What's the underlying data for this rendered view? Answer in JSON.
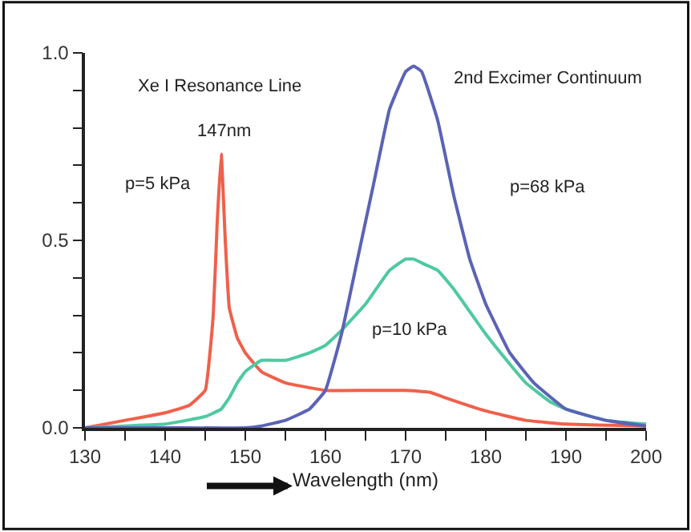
{
  "chart_data": {
    "type": "line",
    "xlabel": "Wavelength (nm)",
    "xlim": [
      130,
      200
    ],
    "ylim": [
      0,
      1
    ],
    "xticks": [
      130,
      {
        "value": 135,
        "label": null
      },
      140,
      {
        "value": 145,
        "label": null
      },
      150,
      {
        "value": 155,
        "label": null
      },
      160,
      {
        "value": 165,
        "label": null
      },
      170,
      {
        "value": 175,
        "label": null
      },
      180,
      {
        "value": 185,
        "label": null
      },
      190,
      {
        "value": 195,
        "label": null
      },
      200
    ],
    "yticks": [
      {
        "value": 0,
        "label": "0.0"
      },
      {
        "value": 0.1,
        "label": null
      },
      {
        "value": 0.2,
        "label": null
      },
      {
        "value": 0.3,
        "label": null
      },
      {
        "value": 0.4,
        "label": null
      },
      {
        "value": 0.5,
        "label": "0.5"
      },
      {
        "value": 0.6,
        "label": null
      },
      {
        "value": 0.7,
        "label": null
      },
      {
        "value": 0.8,
        "label": null
      },
      {
        "value": 0.9,
        "label": null
      },
      {
        "value": 1,
        "label": "1.0"
      }
    ],
    "legend": false,
    "marker": "none",
    "line_style": "solid",
    "series": [
      {
        "color": "#f0604a",
        "x": [
          130,
          135,
          140,
          143,
          145,
          146,
          146.5,
          147,
          147.5,
          148,
          149,
          150,
          152,
          155,
          160,
          165,
          170,
          173,
          175,
          180,
          185,
          190,
          195,
          200
        ],
        "values": [
          0,
          0.02,
          0.04,
          0.06,
          0.1,
          0.3,
          0.55,
          0.73,
          0.5,
          0.32,
          0.24,
          0.2,
          0.15,
          0.12,
          0.1,
          0.1,
          0.1,
          0.095,
          0.08,
          0.045,
          0.02,
          0.01,
          0.007,
          0.005
        ]
      },
      {
        "color": "#4ec9a0",
        "x": [
          130,
          135,
          140,
          145,
          147,
          148,
          149,
          150,
          152,
          155,
          158,
          160,
          162,
          165,
          168,
          170,
          171,
          172,
          174,
          176,
          178,
          180,
          183,
          185,
          188,
          190,
          195,
          200
        ],
        "values": [
          0,
          0.005,
          0.01,
          0.03,
          0.05,
          0.08,
          0.12,
          0.15,
          0.18,
          0.18,
          0.2,
          0.22,
          0.26,
          0.33,
          0.42,
          0.45,
          0.45,
          0.44,
          0.42,
          0.37,
          0.31,
          0.25,
          0.17,
          0.12,
          0.07,
          0.05,
          0.02,
          0.01
        ]
      },
      {
        "color": "#5b63b5",
        "x": [
          130,
          140,
          150,
          152,
          155,
          158,
          160,
          162,
          164,
          166,
          168,
          170,
          171,
          172,
          174,
          176,
          178,
          180,
          183,
          186,
          190,
          195,
          200
        ],
        "values": [
          0,
          0,
          0,
          0.005,
          0.02,
          0.05,
          0.1,
          0.25,
          0.45,
          0.65,
          0.85,
          0.95,
          0.965,
          0.95,
          0.82,
          0.62,
          0.45,
          0.33,
          0.2,
          0.12,
          0.05,
          0.02,
          0.005
        ]
      }
    ],
    "annotations": [
      "Xe I Resonance Line",
      "147nm",
      "p=5 kPa",
      "2nd Excimer Continuum",
      "p=68 kPa",
      "p=10 kPa"
    ]
  }
}
